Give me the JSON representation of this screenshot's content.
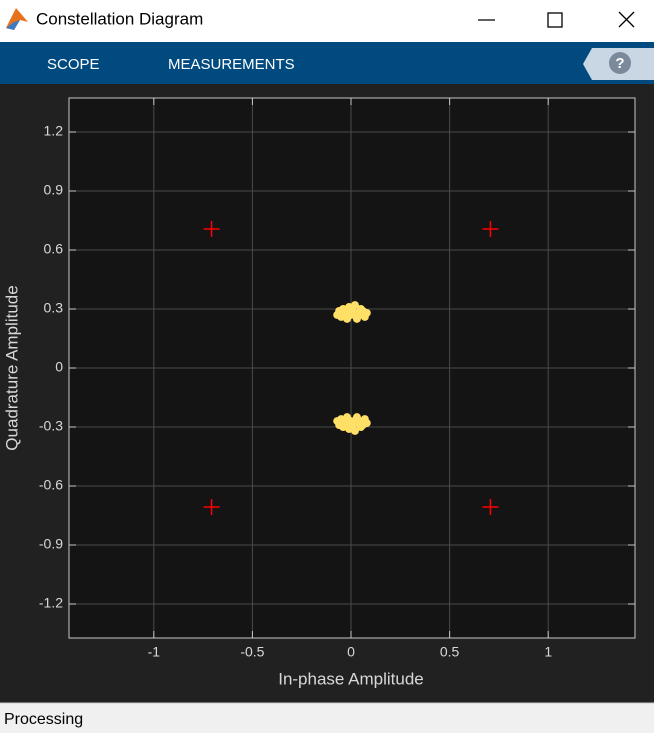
{
  "window": {
    "title": "Constellation Diagram",
    "tabs": [
      "SCOPE",
      "MEASUREMENTS"
    ],
    "help": "?",
    "status": "Processing"
  },
  "chart_data": {
    "type": "scatter",
    "x_label": "In-phase Amplitude",
    "y_label": "Quadrature Amplitude",
    "xlim": [
      -1.43,
      1.44
    ],
    "ylim": [
      -1.373,
      1.373
    ],
    "xticks": [
      -1,
      -0.5,
      0,
      0.5,
      1
    ],
    "yticks": [
      -1.2,
      -0.9,
      -0.6,
      -0.3,
      0,
      0.3,
      0.6,
      0.9,
      1.2
    ],
    "grid": true,
    "series": [
      {
        "color": "#ff0000",
        "marker": "plus",
        "x": [
          -0.707,
          0.707,
          -0.707,
          0.707
        ],
        "values": [
          0.707,
          0.707,
          -0.707,
          -0.707
        ]
      },
      {
        "color": "#ffe066",
        "marker": "dot",
        "x": [
          -0.07,
          -0.06,
          -0.05,
          -0.04,
          -0.03,
          -0.02,
          -0.01,
          0,
          0.01,
          0.02,
          0.03,
          0.04,
          0.05,
          0.06,
          0.07,
          0.08,
          -0.05,
          0,
          0.03,
          0.06,
          -0.02,
          0.02,
          -0.07,
          -0.06,
          -0.05,
          -0.04,
          -0.03,
          -0.02,
          -0.01,
          0,
          0.01,
          0.02,
          0.03,
          0.04,
          0.05,
          0.06,
          0.07,
          0.08,
          -0.05,
          0,
          0.03,
          0.06,
          -0.02,
          0.02
        ],
        "values": [
          0.27,
          0.29,
          0.26,
          0.3,
          0.28,
          0.25,
          0.31,
          0.27,
          0.29,
          0.32,
          0.26,
          0.28,
          0.3,
          0.27,
          0.26,
          0.28,
          0.29,
          0.3,
          0.25,
          0.29,
          0.27,
          0.28,
          -0.27,
          -0.29,
          -0.26,
          -0.3,
          -0.28,
          -0.25,
          -0.31,
          -0.27,
          -0.29,
          -0.32,
          -0.26,
          -0.28,
          -0.3,
          -0.27,
          -0.26,
          -0.28,
          -0.29,
          -0.3,
          -0.25,
          -0.29,
          -0.27,
          -0.28
        ]
      }
    ]
  }
}
